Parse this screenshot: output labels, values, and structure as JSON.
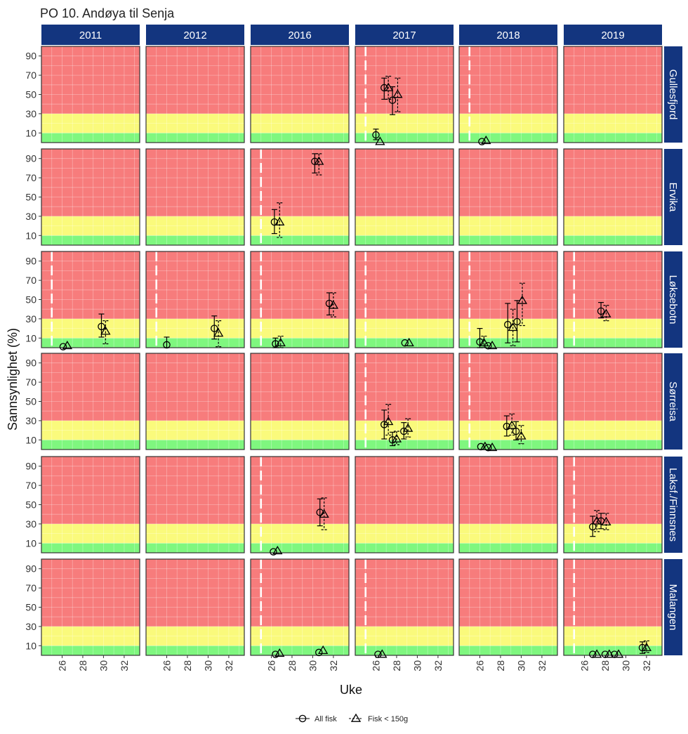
{
  "chart_data": {
    "type": "scatter",
    "title": "PO 10. Andøya til Senja",
    "xlabel": "Uke",
    "ylabel": "Sannsynlighet (%)",
    "xlim": [
      24,
      33.5
    ],
    "ylim": [
      0,
      100
    ],
    "x_ticks": [
      26,
      28,
      30,
      32
    ],
    "y_ticks": [
      10,
      30,
      50,
      70,
      90
    ],
    "columns": [
      "2011",
      "2012",
      "2016",
      "2017",
      "2018",
      "2019"
    ],
    "rows": [
      "Gullesfjord",
      "Ervika",
      "Løksebotn",
      "Sørreisa",
      "Laksf./Finnsnes",
      "Malangen"
    ],
    "bands": [
      {
        "from": 0,
        "to": 10,
        "color": "#7FF77F"
      },
      {
        "from": 10,
        "to": 30,
        "color": "#FAFA7C"
      },
      {
        "from": 30,
        "to": 100,
        "color": "#F77C7C"
      }
    ],
    "grid": true,
    "legend_position": "bottom",
    "colors": {
      "strip": "#13357F",
      "marker": "#000000",
      "start_line": "#ffffff"
    },
    "series": [
      {
        "name": "All fisk",
        "marker": "circle",
        "errorbar": "solid"
      },
      {
        "name": "Fisk < 150g",
        "marker": "triangle",
        "errorbar": "dashed"
      }
    ],
    "start_week": [
      [
        null,
        null,
        null,
        25,
        25,
        null
      ],
      [
        null,
        null,
        25,
        null,
        null,
        null
      ],
      [
        25,
        25,
        25,
        25,
        25,
        25
      ],
      [
        null,
        null,
        null,
        25,
        25,
        null
      ],
      [
        null,
        null,
        25,
        null,
        null,
        25
      ],
      [
        null,
        null,
        25,
        25,
        null,
        25
      ]
    ],
    "points": [
      {
        "row": 0,
        "col": 3,
        "series": 0,
        "x": 26.0,
        "y": 8,
        "lo": 3,
        "hi": 14
      },
      {
        "row": 0,
        "col": 3,
        "series": 1,
        "x": 26.4,
        "y": 1
      },
      {
        "row": 0,
        "col": 3,
        "series": 0,
        "x": 26.8,
        "y": 57,
        "lo": 45,
        "hi": 67
      },
      {
        "row": 0,
        "col": 3,
        "series": 1,
        "x": 27.2,
        "y": 57,
        "lo": 45,
        "hi": 69
      },
      {
        "row": 0,
        "col": 3,
        "series": 0,
        "x": 27.6,
        "y": 44,
        "lo": 29,
        "hi": 58
      },
      {
        "row": 0,
        "col": 3,
        "series": 1,
        "x": 28.1,
        "y": 50,
        "lo": 32,
        "hi": 67
      },
      {
        "row": 0,
        "col": 4,
        "series": 0,
        "x": 26.2,
        "y": 1
      },
      {
        "row": 0,
        "col": 4,
        "series": 1,
        "x": 26.6,
        "y": 2
      },
      {
        "row": 1,
        "col": 2,
        "series": 0,
        "x": 26.3,
        "y": 24,
        "lo": 12,
        "hi": 37
      },
      {
        "row": 1,
        "col": 2,
        "series": 1,
        "x": 26.8,
        "y": 24,
        "lo": 8,
        "hi": 44
      },
      {
        "row": 1,
        "col": 2,
        "series": 0,
        "x": 30.2,
        "y": 87,
        "lo": 75,
        "hi": 95
      },
      {
        "row": 1,
        "col": 2,
        "series": 1,
        "x": 30.6,
        "y": 87,
        "lo": 73,
        "hi": 95
      },
      {
        "row": 2,
        "col": 0,
        "series": 0,
        "x": 26.1,
        "y": 1
      },
      {
        "row": 2,
        "col": 0,
        "series": 1,
        "x": 26.5,
        "y": 2
      },
      {
        "row": 2,
        "col": 0,
        "series": 0,
        "x": 29.8,
        "y": 22,
        "lo": 11,
        "hi": 35
      },
      {
        "row": 2,
        "col": 0,
        "series": 1,
        "x": 30.2,
        "y": 17,
        "lo": 4,
        "hi": 28
      },
      {
        "row": 2,
        "col": 1,
        "series": 0,
        "x": 26.0,
        "y": 3,
        "lo": 0,
        "hi": 11
      },
      {
        "row": 2,
        "col": 1,
        "series": 0,
        "x": 30.6,
        "y": 20,
        "lo": 9,
        "hi": 33
      },
      {
        "row": 2,
        "col": 1,
        "series": 1,
        "x": 31.0,
        "y": 15,
        "lo": 1,
        "hi": 28
      },
      {
        "row": 2,
        "col": 2,
        "series": 0,
        "x": 26.4,
        "y": 4,
        "lo": 0,
        "hi": 10
      },
      {
        "row": 2,
        "col": 2,
        "series": 1,
        "x": 26.9,
        "y": 5,
        "lo": 0,
        "hi": 12
      },
      {
        "row": 2,
        "col": 2,
        "series": 0,
        "x": 31.6,
        "y": 46,
        "lo": 34,
        "hi": 57
      },
      {
        "row": 2,
        "col": 2,
        "series": 1,
        "x": 32.0,
        "y": 44,
        "lo": 32,
        "hi": 57
      },
      {
        "row": 2,
        "col": 3,
        "series": 0,
        "x": 28.8,
        "y": 5
      },
      {
        "row": 2,
        "col": 3,
        "series": 1,
        "x": 29.2,
        "y": 5
      },
      {
        "row": 2,
        "col": 4,
        "series": 0,
        "x": 26.0,
        "y": 6,
        "lo": 0,
        "hi": 20
      },
      {
        "row": 2,
        "col": 4,
        "series": 1,
        "x": 26.4,
        "y": 5,
        "lo": 0,
        "hi": 12
      },
      {
        "row": 2,
        "col": 4,
        "series": 0,
        "x": 26.8,
        "y": 2
      },
      {
        "row": 2,
        "col": 4,
        "series": 1,
        "x": 27.2,
        "y": 2
      },
      {
        "row": 2,
        "col": 4,
        "series": 0,
        "x": 28.7,
        "y": 24,
        "lo": 5,
        "hi": 46
      },
      {
        "row": 2,
        "col": 4,
        "series": 1,
        "x": 29.2,
        "y": 21,
        "lo": 2,
        "hi": 40
      },
      {
        "row": 2,
        "col": 4,
        "series": 0,
        "x": 29.6,
        "y": 27,
        "lo": 6,
        "hi": 49
      },
      {
        "row": 2,
        "col": 4,
        "series": 1,
        "x": 30.1,
        "y": 49,
        "lo": 23,
        "hi": 67
      },
      {
        "row": 2,
        "col": 5,
        "series": 0,
        "x": 27.6,
        "y": 38,
        "lo": 31,
        "hi": 47
      },
      {
        "row": 2,
        "col": 5,
        "series": 1,
        "x": 28.1,
        "y": 35,
        "lo": 28,
        "hi": 44
      },
      {
        "row": 3,
        "col": 3,
        "series": 0,
        "x": 26.8,
        "y": 26,
        "lo": 11,
        "hi": 41
      },
      {
        "row": 3,
        "col": 3,
        "series": 1,
        "x": 27.2,
        "y": 29,
        "lo": 15,
        "hi": 47
      },
      {
        "row": 3,
        "col": 3,
        "series": 0,
        "x": 27.6,
        "y": 10,
        "lo": 4,
        "hi": 18
      },
      {
        "row": 3,
        "col": 3,
        "series": 1,
        "x": 28.0,
        "y": 11,
        "lo": 5,
        "hi": 19
      },
      {
        "row": 3,
        "col": 3,
        "series": 0,
        "x": 28.7,
        "y": 19,
        "lo": 11,
        "hi": 28
      },
      {
        "row": 3,
        "col": 3,
        "series": 1,
        "x": 29.1,
        "y": 22,
        "lo": 13,
        "hi": 32
      },
      {
        "row": 3,
        "col": 4,
        "series": 0,
        "x": 26.1,
        "y": 3
      },
      {
        "row": 3,
        "col": 4,
        "series": 1,
        "x": 26.5,
        "y": 3
      },
      {
        "row": 3,
        "col": 4,
        "series": 0,
        "x": 26.8,
        "y": 2
      },
      {
        "row": 3,
        "col": 4,
        "series": 1,
        "x": 27.2,
        "y": 2
      },
      {
        "row": 3,
        "col": 4,
        "series": 0,
        "x": 28.6,
        "y": 24,
        "lo": 14,
        "hi": 35
      },
      {
        "row": 3,
        "col": 4,
        "series": 1,
        "x": 29.1,
        "y": 25,
        "lo": 15,
        "hi": 37
      },
      {
        "row": 3,
        "col": 4,
        "series": 0,
        "x": 29.5,
        "y": 19,
        "lo": 10,
        "hi": 29
      },
      {
        "row": 3,
        "col": 4,
        "series": 1,
        "x": 30.0,
        "y": 14,
        "lo": 6,
        "hi": 25
      },
      {
        "row": 4,
        "col": 2,
        "series": 0,
        "x": 26.2,
        "y": 1
      },
      {
        "row": 4,
        "col": 2,
        "series": 1,
        "x": 26.6,
        "y": 2
      },
      {
        "row": 4,
        "col": 2,
        "series": 0,
        "x": 30.7,
        "y": 42,
        "lo": 28,
        "hi": 56
      },
      {
        "row": 4,
        "col": 2,
        "series": 1,
        "x": 31.1,
        "y": 40,
        "lo": 24,
        "hi": 57
      },
      {
        "row": 4,
        "col": 5,
        "series": 0,
        "x": 26.8,
        "y": 27,
        "lo": 17,
        "hi": 38
      },
      {
        "row": 4,
        "col": 5,
        "series": 1,
        "x": 27.2,
        "y": 33,
        "lo": 22,
        "hi": 44
      },
      {
        "row": 4,
        "col": 5,
        "series": 0,
        "x": 27.6,
        "y": 33,
        "lo": 25,
        "hi": 41
      },
      {
        "row": 4,
        "col": 5,
        "series": 1,
        "x": 28.1,
        "y": 32,
        "lo": 24,
        "hi": 41
      },
      {
        "row": 5,
        "col": 2,
        "series": 0,
        "x": 26.4,
        "y": 1
      },
      {
        "row": 5,
        "col": 2,
        "series": 1,
        "x": 26.8,
        "y": 2
      },
      {
        "row": 5,
        "col": 2,
        "series": 0,
        "x": 30.6,
        "y": 3
      },
      {
        "row": 5,
        "col": 2,
        "series": 1,
        "x": 31.0,
        "y": 5
      },
      {
        "row": 5,
        "col": 3,
        "series": 0,
        "x": 26.2,
        "y": 1
      },
      {
        "row": 5,
        "col": 3,
        "series": 1,
        "x": 26.6,
        "y": 1
      },
      {
        "row": 5,
        "col": 5,
        "series": 0,
        "x": 26.8,
        "y": 1
      },
      {
        "row": 5,
        "col": 5,
        "series": 1,
        "x": 27.2,
        "y": 1
      },
      {
        "row": 5,
        "col": 5,
        "series": 0,
        "x": 28.0,
        "y": 1
      },
      {
        "row": 5,
        "col": 5,
        "series": 1,
        "x": 28.4,
        "y": 1
      },
      {
        "row": 5,
        "col": 5,
        "series": 0,
        "x": 28.9,
        "y": 1
      },
      {
        "row": 5,
        "col": 5,
        "series": 1,
        "x": 29.3,
        "y": 1
      },
      {
        "row": 5,
        "col": 5,
        "series": 0,
        "x": 31.6,
        "y": 8,
        "lo": 2,
        "hi": 14
      },
      {
        "row": 5,
        "col": 5,
        "series": 1,
        "x": 32.0,
        "y": 8,
        "lo": 3,
        "hi": 15
      }
    ]
  }
}
